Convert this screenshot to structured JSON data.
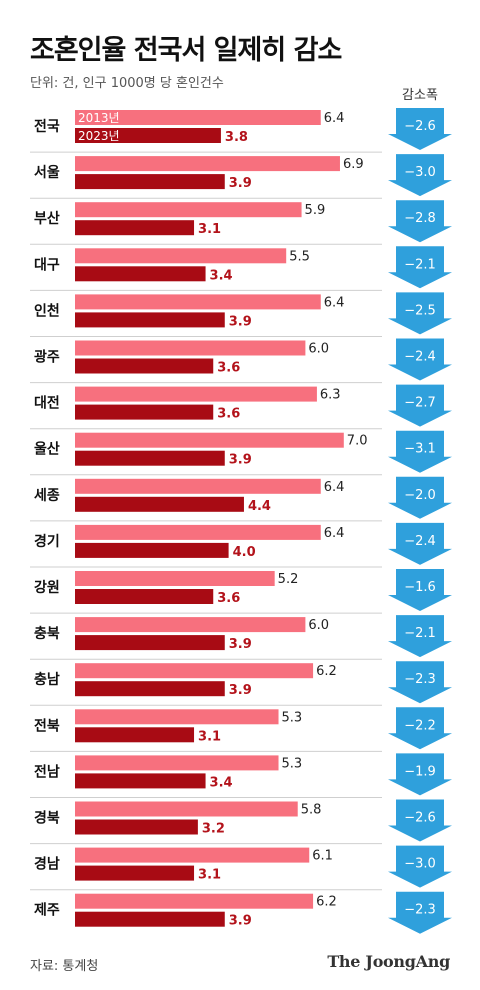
{
  "title": "조혼인율 전국서 일제히 감소",
  "unit_note": "단위: 건, 인구 1000명 당 혼인건수",
  "change_header": "감소폭",
  "source": "자료: 통계청",
  "logo": "The JoongAng",
  "colors": {
    "bar_2013": "#f7707e",
    "bar_2023": "#a80b14",
    "label_2023": "#b3131b",
    "arrow": "#2fa0dc",
    "divider": "#cfcfcf"
  },
  "chart_data": {
    "type": "bar",
    "orientation": "horizontal",
    "title": "조혼인율 전국서 일제히 감소",
    "legend": [
      "2013년",
      "2023년"
    ],
    "categories": [
      "전국",
      "서울",
      "부산",
      "대구",
      "인천",
      "광주",
      "대전",
      "울산",
      "세종",
      "경기",
      "강원",
      "충북",
      "충남",
      "전북",
      "전남",
      "경북",
      "경남",
      "제주"
    ],
    "series": [
      {
        "name": "2013년",
        "values": [
          6.4,
          6.9,
          5.9,
          5.5,
          6.4,
          6.0,
          6.3,
          7.0,
          6.4,
          6.4,
          5.2,
          6.0,
          6.2,
          5.3,
          5.3,
          5.8,
          6.1,
          6.2
        ]
      },
      {
        "name": "2023년",
        "values": [
          3.8,
          3.9,
          3.1,
          3.4,
          3.9,
          3.6,
          3.6,
          3.9,
          4.4,
          4.0,
          3.6,
          3.9,
          3.9,
          3.1,
          3.4,
          3.2,
          3.1,
          3.9
        ]
      }
    ],
    "labels_2013": [
      "6.4",
      "6.9",
      "5.9",
      "5.5",
      "6.4",
      "6.0",
      "6.3",
      "7.0",
      "6.4",
      "6.4",
      "5.2",
      "6.0",
      "6.2",
      "5.3",
      "5.3",
      "5.8",
      "6.1",
      "6.2"
    ],
    "labels_2023": [
      "3.8",
      "3.9",
      "3.1",
      "3.4",
      "3.9",
      "3.6",
      "3.6",
      "3.9",
      "4.4",
      "4.0",
      "3.6",
      "3.9",
      "3.9",
      "3.1",
      "3.4",
      "3.2",
      "3.1",
      "3.9"
    ],
    "decrease": [
      "−2.6",
      "−3.0",
      "−2.8",
      "−2.1",
      "−2.5",
      "−2.4",
      "−2.7",
      "−3.1",
      "−2.0",
      "−2.4",
      "−1.6",
      "−2.1",
      "−2.3",
      "−2.2",
      "−1.9",
      "−2.6",
      "−3.0",
      "−2.3"
    ]
  }
}
